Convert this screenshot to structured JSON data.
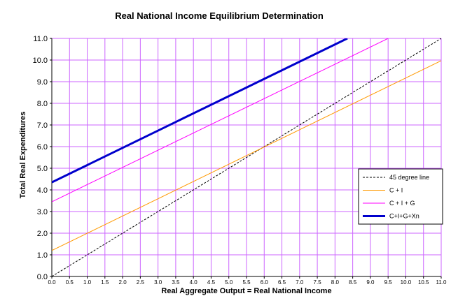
{
  "chart_data": {
    "type": "line",
    "title": "Real National Income Equilibrium Determination",
    "xlabel": "Real Aggregate Output = Real National Income",
    "ylabel": "Total Real Expenditures",
    "xlim": [
      0,
      11
    ],
    "ylim": [
      0,
      11
    ],
    "x_ticks": [
      "0.0",
      "0.5",
      "1.0",
      "1.5",
      "2.0",
      "2.5",
      "3.0",
      "3.5",
      "4.0",
      "4.5",
      "5.0",
      "5.5",
      "6.0",
      "6.5",
      "7.0",
      "7.5",
      "8.0",
      "8.5",
      "9.0",
      "9.5",
      "10.0",
      "10.5",
      "11.0"
    ],
    "y_ticks": [
      "0.0",
      "1.0",
      "2.0",
      "3.0",
      "4.0",
      "5.0",
      "6.0",
      "7.0",
      "8.0",
      "9.0",
      "10.0",
      "11.0"
    ],
    "grid": true,
    "grid_color": "#cc66ff",
    "legend_position": "right",
    "series": [
      {
        "name": "45 degree line",
        "color": "#000000",
        "dashed": true,
        "width": 1,
        "x": [
          0,
          11
        ],
        "y": [
          0,
          11
        ]
      },
      {
        "name": "C + I",
        "color": "#ff9900",
        "dashed": false,
        "width": 1,
        "x": [
          0,
          11
        ],
        "y": [
          1.2,
          9.97
        ]
      },
      {
        "name": "C + I + G",
        "color": "#ff00ff",
        "dashed": false,
        "width": 1,
        "x": [
          0,
          9.5
        ],
        "y": [
          3.45,
          11.0
        ]
      },
      {
        "name": "C+I+G+Xn",
        "color": "#0000cc",
        "dashed": false,
        "width": 3,
        "x": [
          0,
          8.35
        ],
        "y": [
          4.35,
          11.0
        ]
      }
    ]
  }
}
